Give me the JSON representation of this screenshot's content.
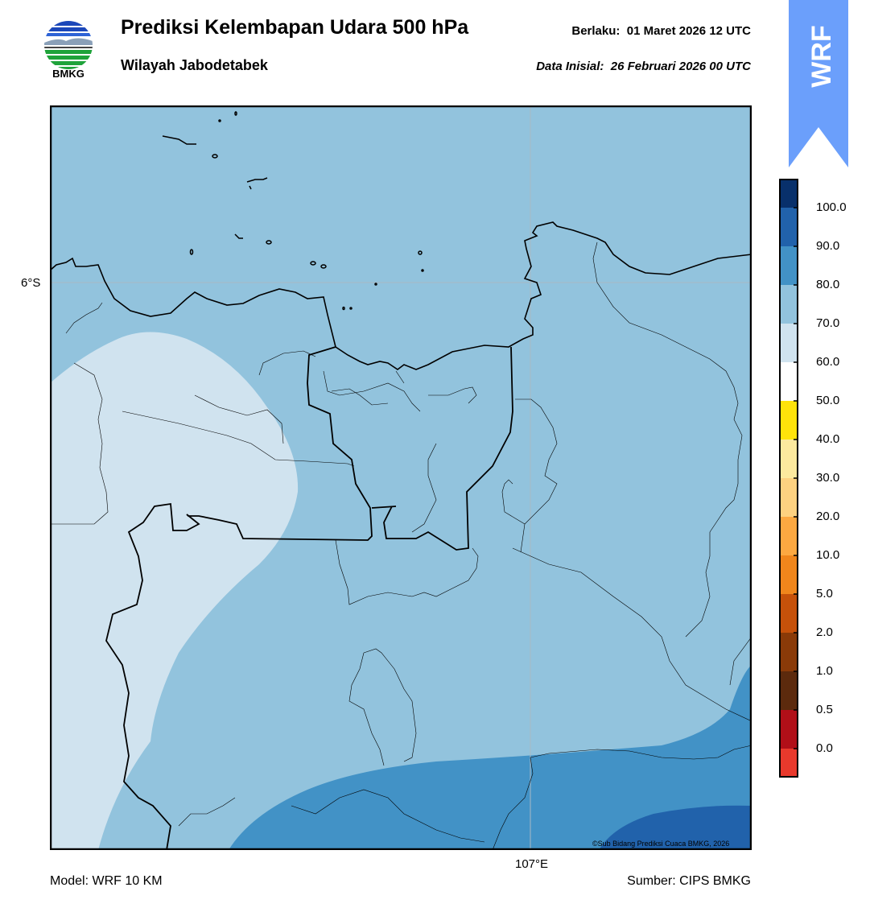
{
  "header": {
    "logo_text": "BMKG",
    "title": "Prediksi Kelembapan Udara 500 hPa",
    "subtitle": "Wilayah Jabodetabek",
    "valid_label": "Berlaku:",
    "valid_time": "01 Maret 2026 12 UTC",
    "initial_label": "Data Inisial:",
    "initial_time": "26 Februari 2026 00 UTC"
  },
  "map": {
    "lat_label": "6°S",
    "lon_label": "107°E",
    "copyright": "©Sub Bidang Prediksi Cuaca BMKG, 2026",
    "colors": {
      "rh_50_60": "#d0e3ef",
      "rh_60_70": "#92c3dd",
      "rh_70_80": "#4292c6",
      "rh_80_90": "#2162ab",
      "frame": "#000000",
      "gridline": "#a8b8c4"
    }
  },
  "footer": {
    "model": "Model: WRF 10 KM",
    "source": "Sumber: CIPS BMKG"
  },
  "ribbon": {
    "text": "WRF",
    "color": "#6b9ffb"
  },
  "colorbar": {
    "ticks": [
      "100.0",
      "90.0",
      "80.0",
      "70.0",
      "60.0",
      "50.0",
      "40.0",
      "30.0",
      "20.0",
      "10.0",
      "5.0",
      "2.0",
      "1.0",
      "0.5",
      "0.0"
    ],
    "colors": [
      "#e8392c",
      "#b10f18",
      "#5c2a0d",
      "#8a3a08",
      "#c6510a",
      "#f0861c",
      "#fca841",
      "#fdd180",
      "#fce99e",
      "#ffe30a",
      "#ffffff",
      "#d0e3ef",
      "#92c3dd",
      "#4292c6",
      "#2162ab",
      "#08306b",
      "#2d004b"
    ]
  }
}
